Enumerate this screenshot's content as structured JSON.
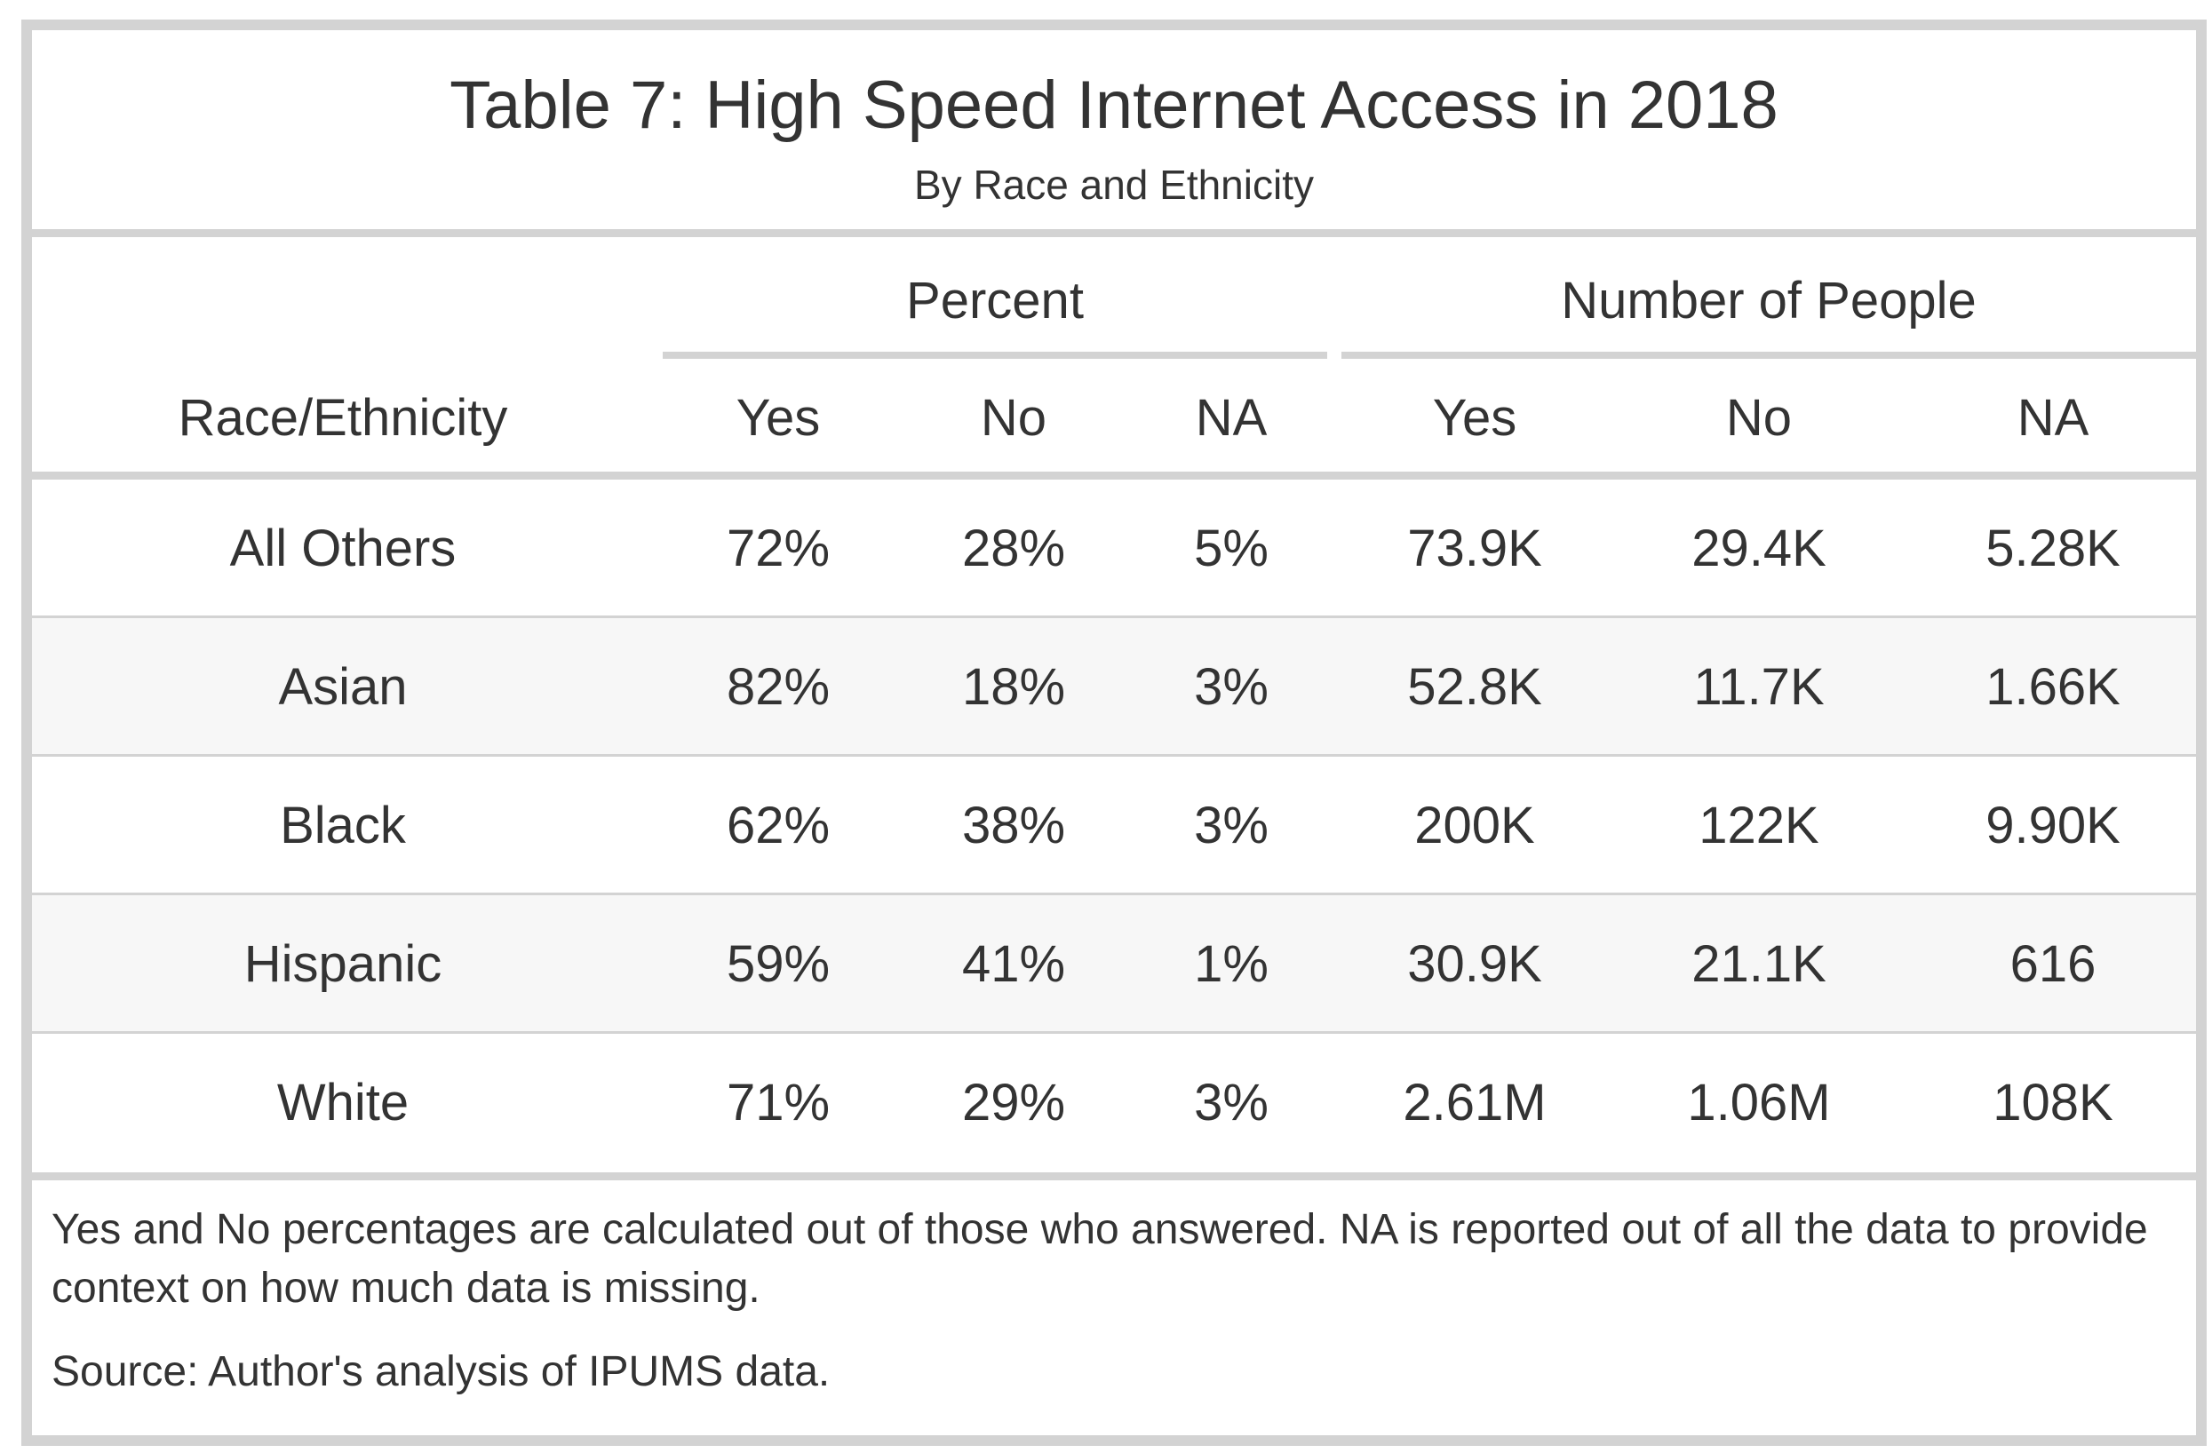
{
  "table": {
    "title": "Table 7: High Speed Internet Access in 2018",
    "subtitle": "By Race and Ethnicity",
    "spanners": {
      "percent": "Percent",
      "number": "Number of People"
    },
    "columns": [
      "Race/Ethnicity",
      "Yes",
      "No",
      "NA",
      "Yes",
      "No",
      "NA"
    ],
    "rows": [
      [
        "All Others",
        "72%",
        "28%",
        "5%",
        "73.9K",
        "29.4K",
        "5.28K"
      ],
      [
        "Asian",
        "82%",
        "18%",
        "3%",
        "52.8K",
        "11.7K",
        "1.66K"
      ],
      [
        "Black",
        "62%",
        "38%",
        "3%",
        "200K",
        "122K",
        "9.90K"
      ],
      [
        "Hispanic",
        "59%",
        "41%",
        "1%",
        "30.9K",
        "21.1K",
        "616"
      ],
      [
        "White",
        "71%",
        "29%",
        "3%",
        "2.61M",
        "1.06M",
        "108K"
      ]
    ],
    "footnote": "Yes and No percentages are calculated out of those who answered. NA is reported out of all the data to provide context on how much data is missing.",
    "source": "Source: Author's analysis of IPUMS data.",
    "colors": {
      "border": "#d3d3d3",
      "text": "#333333",
      "row_shade": "#f7f7f7"
    }
  }
}
